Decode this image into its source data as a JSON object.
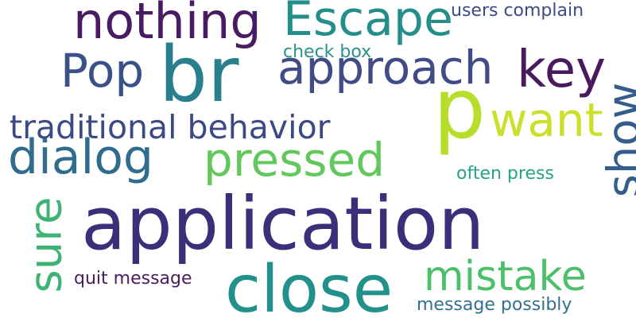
{
  "words": {
    "application": {
      "text": "application",
      "color": "#3b2f7a"
    },
    "br": {
      "text": "br",
      "color": "#2a7f8f"
    },
    "close": {
      "text": "close",
      "color": "#22918c"
    },
    "p": {
      "text": "p",
      "color": "#b8dd2a"
    },
    "nothing": {
      "text": "nothing",
      "color": "#471c62"
    },
    "escape": {
      "text": "Escape",
      "color": "#248f8a"
    },
    "approach": {
      "text": "approach",
      "color": "#414b85"
    },
    "pop": {
      "text": "Pop",
      "color": "#3a5187"
    },
    "key": {
      "text": "key",
      "color": "#4a1a5e"
    },
    "dialog": {
      "text": "dialog",
      "color": "#2f6c8e"
    },
    "pressed": {
      "text": "pressed",
      "color": "#62c85c"
    },
    "want": {
      "text": "want",
      "color": "#cbe02a"
    },
    "mistake": {
      "text": "mistake",
      "color": "#4cbf6b"
    },
    "traditional_behavior": {
      "text": "traditional behavior",
      "color": "#3c4a84"
    },
    "show": {
      "text": "show",
      "color": "#355d8c"
    },
    "sure": {
      "text": "sure",
      "color": "#3eb373"
    },
    "users_complain": {
      "text": "users complain",
      "color": "#3e4a86"
    },
    "check_box": {
      "text": "check box",
      "color": "#2c918b"
    },
    "often_press": {
      "text": "often press",
      "color": "#26a384"
    },
    "quit_message": {
      "text": "quit message",
      "color": "#4b1b5f"
    },
    "message_possibly": {
      "text": "message possibly",
      "color": "#34708e"
    }
  }
}
